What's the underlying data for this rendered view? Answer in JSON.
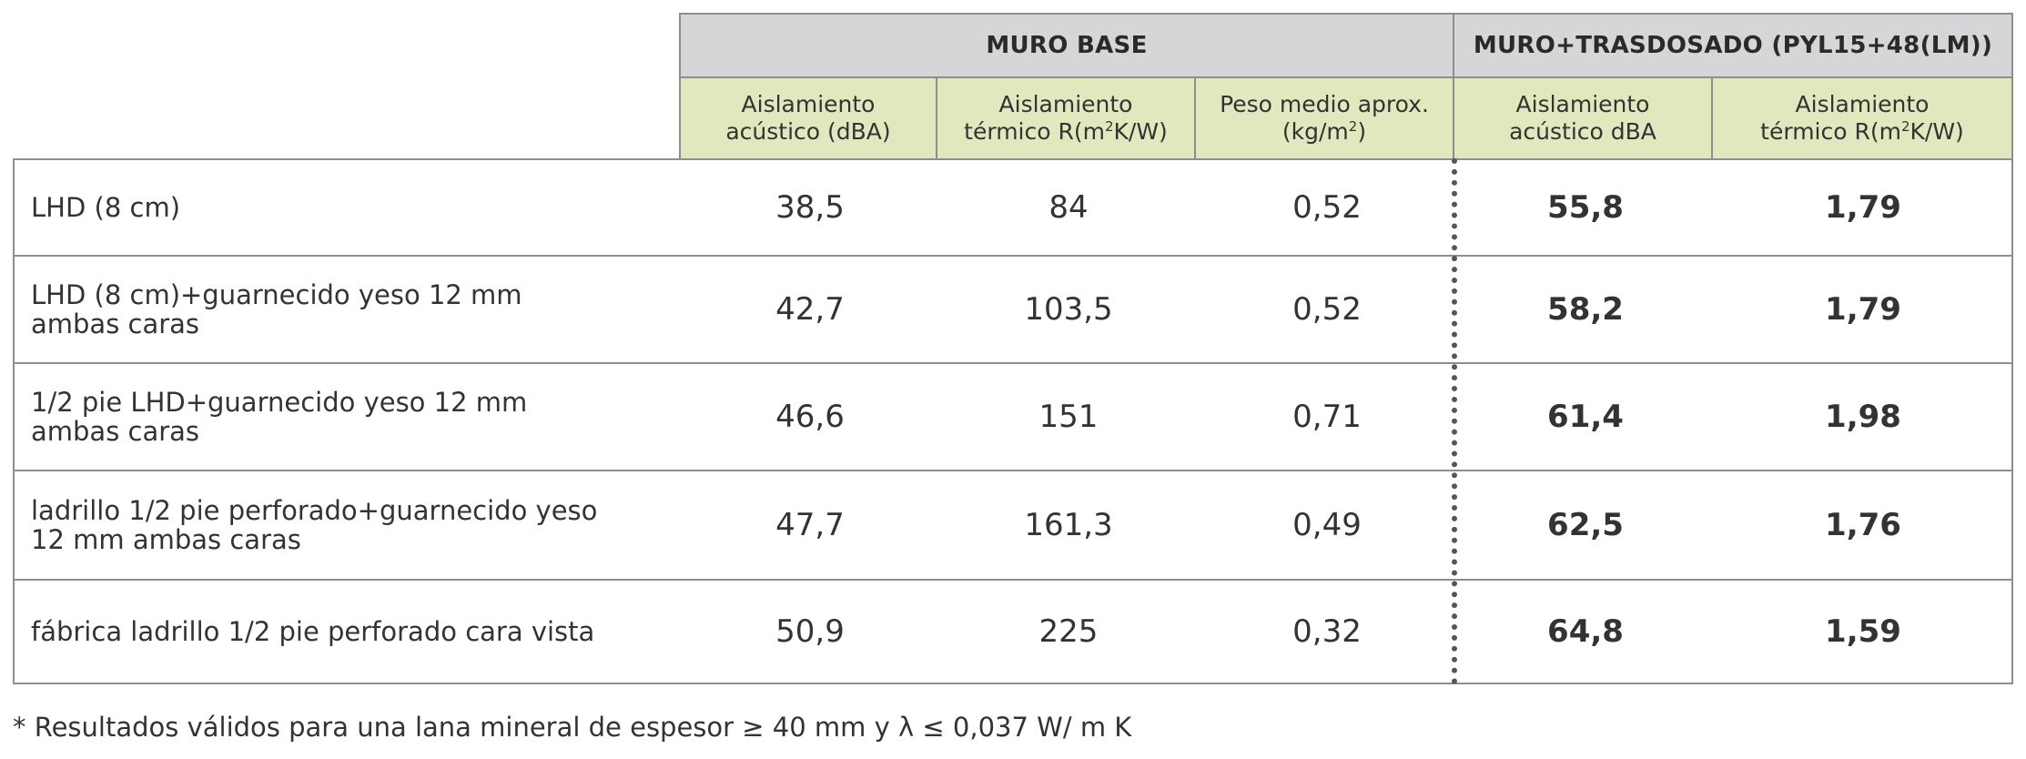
{
  "header": {
    "group_base": "MURO BASE",
    "group_trasdosado": "MURO+TRASDOSADO (PYL15+48(LM))",
    "sub": [
      {
        "line1": "Aislamiento",
        "line2_a": "acústico (dBA)",
        "line2_sup": "",
        "line2_b": ""
      },
      {
        "line1": "Aislamiento",
        "line2_a": "térmico  R(m",
        "line2_sup": "2",
        "line2_b": "K/W)"
      },
      {
        "line1": "Peso medio aprox.",
        "line2_a": "(kg/m",
        "line2_sup": "2",
        "line2_b": ")"
      },
      {
        "line1": "Aislamiento",
        "line2_a": "acústico dBA",
        "line2_sup": "",
        "line2_b": ""
      },
      {
        "line1": "Aislamiento",
        "line2_a": "térmico  R(m",
        "line2_sup": "2",
        "line2_b": "K/W)"
      }
    ]
  },
  "rows": [
    {
      "label_1": "LHD (8 cm)",
      "label_2": "",
      "v1": "38,5",
      "v2": "84",
      "v3": "0,52",
      "v4": "55,8",
      "v5": "1,79"
    },
    {
      "label_1": "LHD (8 cm)+guarnecido yeso 12 mm",
      "label_2": "ambas caras",
      "v1": "42,7",
      "v2": "103,5",
      "v3": "0,52",
      "v4": "58,2",
      "v5": "1,79"
    },
    {
      "label_1": "1/2 pie LHD+guarnecido yeso 12 mm",
      "label_2": "ambas caras",
      "v1": "46,6",
      "v2": "151",
      "v3": "0,71",
      "v4": "61,4",
      "v5": "1,98"
    },
    {
      "label_1": "ladrillo 1/2 pie perforado+guarnecido yeso",
      "label_2": "12 mm ambas caras",
      "v1": "47,7",
      "v2": "161,3",
      "v3": "0,49",
      "v4": "62,5",
      "v5": "1,76"
    },
    {
      "label_1": "fábrica ladrillo 1/2 pie perforado cara vista",
      "label_2": "",
      "v1": "50,9",
      "v2": "225",
      "v3": "0,32",
      "v4": "64,8",
      "v5": "1,59"
    }
  ],
  "footnote": "* Resultados válidos para una lana mineral de espesor ≥ 40 mm y λ ≤ 0,037 W/ m K",
  "colors": {
    "group_header_bg": "#d6d6d8",
    "sub_header_bg": "#e2e8bd",
    "border": "#8e8e8e"
  }
}
